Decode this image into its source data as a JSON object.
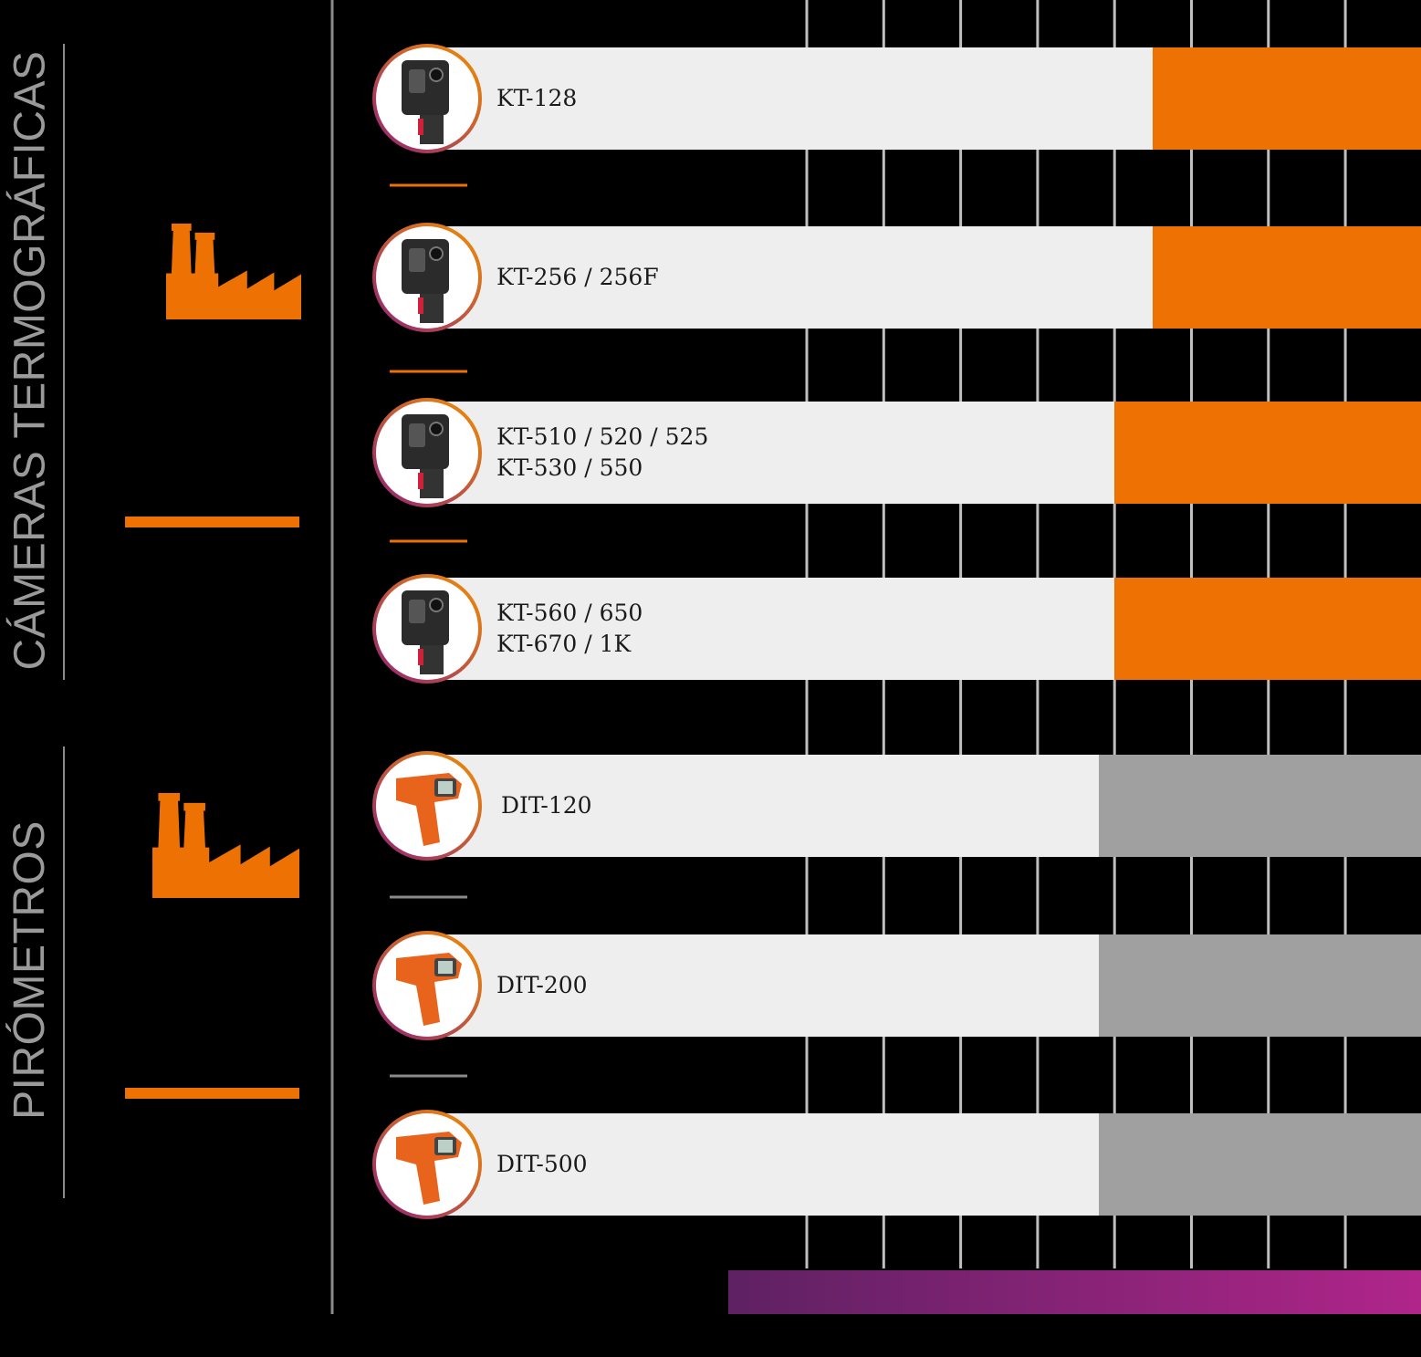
{
  "colors": {
    "background": "#000000",
    "thermal_bar": "#EE7203",
    "pyrometer_bar": "#A0A0A0",
    "label_panel": "#EEEEEE",
    "gridline": "#BFBFBF",
    "accent": "#EE7203",
    "ring_start": "#F39200",
    "ring_end": "#8E1F7A",
    "gradient_start": "#5E2163",
    "gradient_end": "#B0258A"
  },
  "sections": [
    {
      "title": "CÁMERAS TERMOGRÁFICAS",
      "icon": "factory-icon"
    },
    {
      "title": "PIRÓMETROS",
      "icon": "factory-icon"
    }
  ],
  "chart_data": {
    "type": "bar",
    "orientation": "horizontal",
    "title": "",
    "xlabel": "",
    "ylabel": "",
    "grid": true,
    "categories": [
      {
        "lines": [
          "KT-128"
        ],
        "group": "CÁMERAS TERMOGRÁFICAS",
        "icon": "thermal-camera-icon"
      },
      {
        "lines": [
          "KT-256 / 256F"
        ],
        "group": "CÁMERAS TERMOGRÁFICAS",
        "icon": "thermal-camera-icon"
      },
      {
        "lines": [
          "KT-510 / 520 / 525",
          "KT-530 / 550"
        ],
        "group": "CÁMERAS TERMOGRÁFICAS",
        "icon": "thermal-camera-icon"
      },
      {
        "lines": [
          "KT-560 / 650",
          "KT-670 / 1K"
        ],
        "group": "CÁMERAS TERMOGRÁFICAS",
        "icon": "thermal-camera-icon"
      },
      {
        "lines": [
          "DIT-120"
        ],
        "group": "PIRÓMETROS",
        "icon": "pyrometer-icon"
      },
      {
        "lines": [
          "DIT-200"
        ],
        "group": "PIRÓMETROS",
        "icon": "pyrometer-icon"
      },
      {
        "lines": [
          "DIT-500"
        ],
        "group": "PIRÓMETROS",
        "icon": "pyrometer-icon"
      }
    ],
    "series": [
      {
        "values": [
          [
            -15,
            700
          ],
          [
            -15,
            700
          ],
          [
            -20,
            700
          ],
          [
            -20,
            700
          ],
          [
            -22,
            700
          ],
          [
            -22,
            700
          ],
          [
            -22,
            700
          ]
        ]
      }
    ],
    "xlim": [
      -70,
      700
    ],
    "x_gridlines": [
      -60,
      -50,
      -40,
      -30,
      -20,
      -10,
      0,
      10
    ]
  }
}
